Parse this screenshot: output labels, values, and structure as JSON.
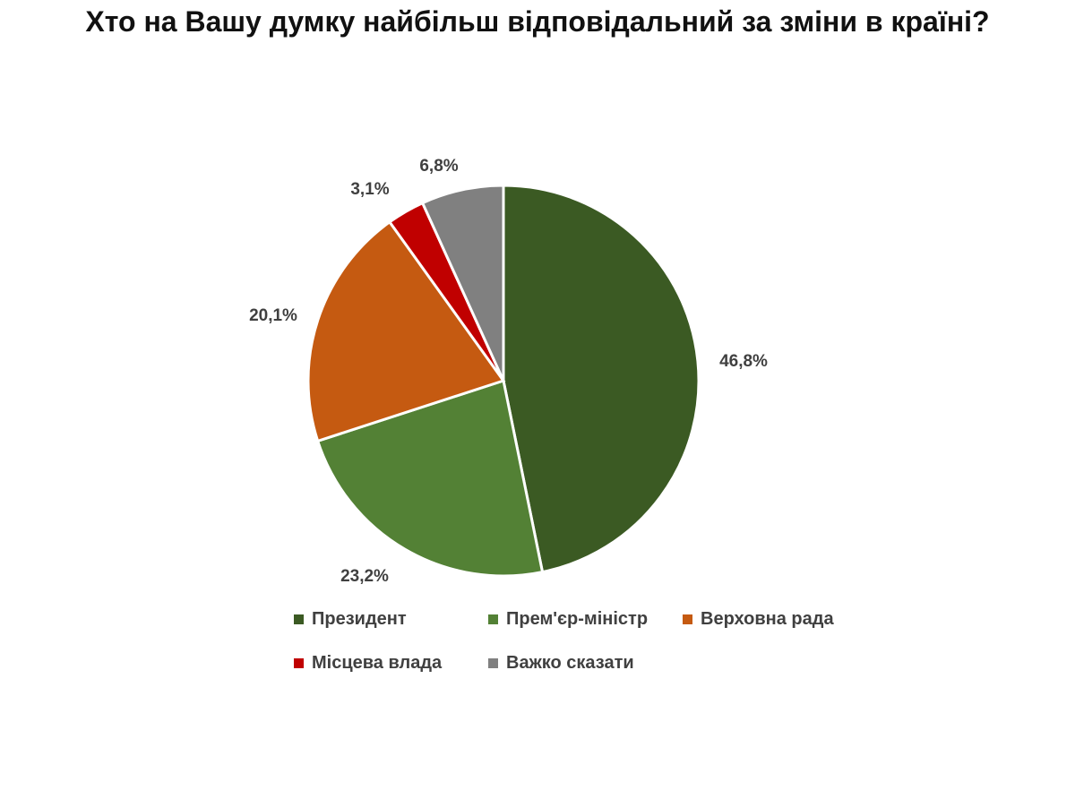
{
  "title": "Хто на Вашу думку найбільш відповідальний за зміни в країні?",
  "chart_data": {
    "type": "pie",
    "title": "Хто на Вашу думку найбільш відповідальний за зміни в країні?",
    "categories": [
      "Президент",
      "Прем'єр-міністр",
      "Верховна рада",
      "Місцева влада",
      "Важко сказати"
    ],
    "values": [
      46.8,
      23.2,
      20.1,
      3.1,
      6.8
    ],
    "labels": [
      "46,8%",
      "23,2%",
      "20,1%",
      "3,1%",
      "6,8%"
    ],
    "colors": [
      "#3b5a23",
      "#538135",
      "#c55a11",
      "#c00000",
      "#808080"
    ],
    "legend_position": "bottom"
  }
}
